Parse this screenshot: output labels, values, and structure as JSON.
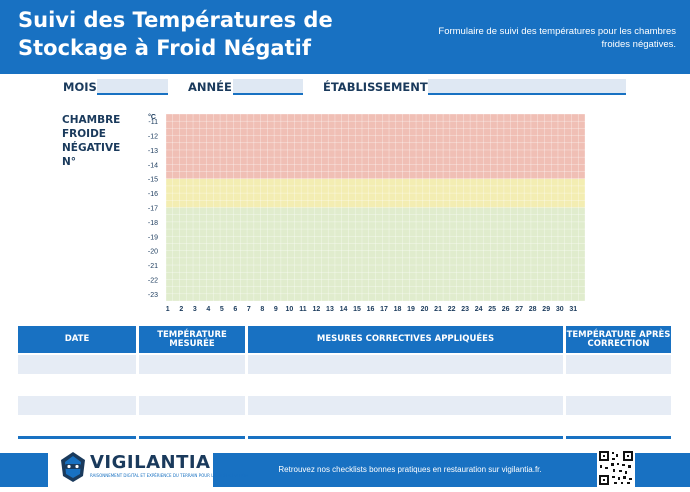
{
  "header": {
    "title_line1": "Suivi des Températures de",
    "title_line2": "Stockage à Froid Négatif",
    "subtitle": "Formulaire de suivi des températures pour les chambres froides négatives."
  },
  "fields": {
    "mois": "MOIS",
    "annee": "ANNÉE",
    "etablissement": "ÉTABLISSEMENT"
  },
  "chamber": {
    "line1": "CHAMBRE",
    "line2": "FROIDE",
    "line3": "NÉGATIVE",
    "line4": "N°"
  },
  "chart_data": {
    "type": "heatmap",
    "y_unit": "°C",
    "y_ticks": [
      -11,
      -12,
      -13,
      -14,
      -15,
      -16,
      -17,
      -18,
      -19,
      -20,
      -21,
      -22,
      -23
    ],
    "x_ticks": [
      1,
      2,
      3,
      4,
      5,
      6,
      7,
      8,
      9,
      10,
      11,
      12,
      13,
      14,
      15,
      16,
      17,
      18,
      19,
      20,
      21,
      22,
      23,
      24,
      25,
      26,
      27,
      28,
      29,
      30,
      31
    ],
    "ylim": [
      -23,
      -10
    ],
    "zones": [
      {
        "from": -10,
        "to": -14.5,
        "color": "#f0bfb5"
      },
      {
        "from": -14.5,
        "to": -16.5,
        "color": "#f3edb2"
      },
      {
        "from": -16.5,
        "to": -23,
        "color": "#e0eccd"
      }
    ],
    "grid": true
  },
  "table": {
    "headers": [
      "DATE",
      "TEMPÉRATURE MESURÉE",
      "MESURES CORRECTIVES APPLIQUÉES",
      "TEMPÉRATURE APRÈS CORRECTION"
    ]
  },
  "footer": {
    "brand": "VIGILANTIA",
    "tagline": "RAISONNEMENT DIGITAL ET EXPÉRIENCE DU TERRAIN POUR LA RESTAURATION",
    "text": "Retrouvez nos checklists bonnes pratiques en restauration sur vigilantia.fr."
  },
  "colors": {
    "primary": "#1871c2",
    "dark_text": "#1a3a5c"
  }
}
